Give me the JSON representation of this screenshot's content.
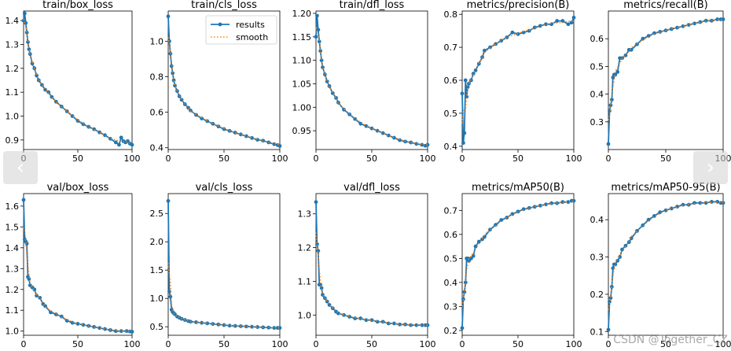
{
  "colors": {
    "results": "#1f77b4",
    "smooth": "#ff7f0e"
  },
  "legend": {
    "results": "results",
    "smooth": "smooth"
  },
  "nav": {
    "prev": "‹",
    "next": "›"
  },
  "watermark": "CSDN @Together_CZ",
  "chart_data": [
    {
      "type": "line",
      "title": "train/box_loss",
      "xlim": [
        0,
        100
      ],
      "ylim": [
        0.86,
        1.44
      ],
      "xticks": [
        0,
        50,
        100
      ],
      "yticks": [
        0.9,
        1.0,
        1.1,
        1.2,
        1.3,
        1.4
      ],
      "ytick_labels": [
        "0.9",
        "1.0",
        "1.1",
        "1.2",
        "1.3",
        "1.4"
      ],
      "legend": false,
      "x": [
        0,
        1,
        2,
        3,
        4,
        5,
        6,
        8,
        10,
        12,
        14,
        17,
        20,
        23,
        26,
        30,
        35,
        40,
        45,
        50,
        55,
        60,
        65,
        70,
        75,
        80,
        85,
        88,
        90,
        92,
        94,
        96,
        98,
        100
      ],
      "y": [
        1.4,
        1.43,
        1.39,
        1.35,
        1.31,
        1.28,
        1.26,
        1.22,
        1.2,
        1.17,
        1.15,
        1.13,
        1.11,
        1.1,
        1.08,
        1.06,
        1.04,
        1.02,
        1.0,
        0.98,
        0.966,
        0.955,
        0.945,
        0.932,
        0.92,
        0.905,
        0.89,
        0.88,
        0.91,
        0.895,
        0.89,
        0.895,
        0.885,
        0.88
      ]
    },
    {
      "type": "line",
      "title": "train/cls_loss",
      "xlim": [
        0,
        100
      ],
      "ylim": [
        0.39,
        1.17
      ],
      "xticks": [
        0,
        50,
        100
      ],
      "yticks": [
        0.4,
        0.6,
        0.8,
        1.0
      ],
      "ytick_labels": [
        "0.4",
        "0.6",
        "0.8",
        "1.0"
      ],
      "legend": true,
      "x": [
        0,
        1,
        2,
        3,
        4,
        5,
        6,
        8,
        10,
        12,
        15,
        18,
        20,
        25,
        30,
        35,
        40,
        45,
        50,
        55,
        60,
        65,
        70,
        75,
        80,
        85,
        90,
        95,
        98,
        100
      ],
      "y": [
        1.14,
        1.0,
        0.93,
        0.86,
        0.82,
        0.78,
        0.75,
        0.72,
        0.69,
        0.67,
        0.645,
        0.625,
        0.61,
        0.585,
        0.565,
        0.55,
        0.535,
        0.52,
        0.505,
        0.495,
        0.485,
        0.475,
        0.465,
        0.455,
        0.445,
        0.44,
        0.43,
        0.42,
        0.415,
        0.41
      ]
    },
    {
      "type": "line",
      "title": "train/dfl_loss",
      "xlim": [
        0,
        100
      ],
      "ylim": [
        0.91,
        1.205
      ],
      "xticks": [
        0,
        50,
        100
      ],
      "yticks": [
        0.95,
        1.0,
        1.05,
        1.1,
        1.15,
        1.2
      ],
      "ytick_labels": [
        "0.95",
        "1.00",
        "1.05",
        "1.10",
        "1.15",
        "1.20"
      ],
      "legend": false,
      "x": [
        0,
        1,
        2,
        3,
        4,
        5,
        6,
        8,
        10,
        12,
        15,
        18,
        20,
        25,
        30,
        35,
        40,
        45,
        50,
        55,
        60,
        65,
        70,
        75,
        80,
        85,
        90,
        95,
        98,
        100
      ],
      "y": [
        1.15,
        1.195,
        1.165,
        1.14,
        1.12,
        1.1,
        1.085,
        1.07,
        1.055,
        1.045,
        1.03,
        1.02,
        1.01,
        0.995,
        0.985,
        0.975,
        0.965,
        0.96,
        0.955,
        0.95,
        0.945,
        0.94,
        0.935,
        0.93,
        0.927,
        0.925,
        0.922,
        0.92,
        0.918,
        0.92
      ]
    },
    {
      "type": "line",
      "title": "metrics/precision(B)",
      "xlim": [
        0,
        100
      ],
      "ylim": [
        0.39,
        0.81
      ],
      "xticks": [
        0,
        50,
        100
      ],
      "yticks": [
        0.4,
        0.5,
        0.6,
        0.7,
        0.8
      ],
      "ytick_labels": [
        "0.4",
        "0.5",
        "0.6",
        "0.7",
        "0.8"
      ],
      "legend": false,
      "x": [
        0,
        1,
        2,
        3,
        4,
        5,
        6,
        8,
        10,
        12,
        15,
        18,
        20,
        25,
        30,
        35,
        40,
        45,
        50,
        55,
        60,
        65,
        70,
        75,
        80,
        85,
        90,
        95,
        98,
        100
      ],
      "y": [
        0.56,
        0.41,
        0.44,
        0.6,
        0.55,
        0.58,
        0.59,
        0.6,
        0.62,
        0.63,
        0.65,
        0.67,
        0.69,
        0.7,
        0.71,
        0.72,
        0.73,
        0.745,
        0.74,
        0.745,
        0.75,
        0.76,
        0.765,
        0.77,
        0.77,
        0.78,
        0.78,
        0.77,
        0.775,
        0.79
      ]
    },
    {
      "type": "line",
      "title": "metrics/recall(B)",
      "xlim": [
        0,
        100
      ],
      "ylim": [
        0.2,
        0.7
      ],
      "xticks": [
        0,
        50,
        100
      ],
      "yticks": [
        0.3,
        0.4,
        0.5,
        0.6
      ],
      "ytick_labels": [
        "0.3",
        "0.4",
        "0.5",
        "0.6"
      ],
      "legend": false,
      "x": [
        0,
        1,
        2,
        3,
        4,
        5,
        6,
        8,
        10,
        12,
        15,
        18,
        20,
        25,
        30,
        35,
        40,
        45,
        50,
        55,
        60,
        65,
        70,
        75,
        80,
        85,
        90,
        95,
        98,
        100
      ],
      "y": [
        0.22,
        0.34,
        0.36,
        0.38,
        0.46,
        0.47,
        0.47,
        0.48,
        0.53,
        0.53,
        0.54,
        0.56,
        0.56,
        0.58,
        0.6,
        0.61,
        0.62,
        0.625,
        0.63,
        0.635,
        0.64,
        0.645,
        0.65,
        0.655,
        0.66,
        0.665,
        0.665,
        0.67,
        0.67,
        0.67
      ]
    },
    {
      "type": "line",
      "title": "val/box_loss",
      "xlim": [
        0,
        100
      ],
      "ylim": [
        0.98,
        1.66
      ],
      "xticks": [
        0,
        50,
        100
      ],
      "yticks": [
        1.0,
        1.1,
        1.2,
        1.3,
        1.4,
        1.5,
        1.6
      ],
      "ytick_labels": [
        "1.0",
        "1.1",
        "1.2",
        "1.3",
        "1.4",
        "1.5",
        "1.6"
      ],
      "legend": false,
      "x": [
        0,
        1,
        2,
        3,
        4,
        5,
        6,
        8,
        10,
        12,
        15,
        18,
        20,
        25,
        30,
        35,
        40,
        45,
        50,
        55,
        60,
        65,
        70,
        75,
        80,
        85,
        90,
        95,
        98,
        100
      ],
      "y": [
        1.63,
        1.44,
        1.43,
        1.42,
        1.26,
        1.25,
        1.22,
        1.21,
        1.2,
        1.17,
        1.16,
        1.13,
        1.12,
        1.09,
        1.08,
        1.07,
        1.05,
        1.04,
        1.035,
        1.03,
        1.025,
        1.02,
        1.015,
        1.01,
        1.005,
        1.0,
        1.0,
        1.0,
        0.998,
        0.997
      ]
    },
    {
      "type": "line",
      "title": "val/cls_loss",
      "xlim": [
        0,
        100
      ],
      "ylim": [
        0.35,
        2.85
      ],
      "xticks": [
        0,
        50,
        100
      ],
      "yticks": [
        0.5,
        1.0,
        1.5,
        2.0,
        2.5
      ],
      "ytick_labels": [
        "0.5",
        "1.0",
        "1.5",
        "2.0",
        "2.5"
      ],
      "legend": false,
      "x": [
        0,
        1,
        2,
        3,
        4,
        5,
        6,
        8,
        10,
        12,
        15,
        18,
        20,
        25,
        30,
        35,
        40,
        45,
        50,
        55,
        60,
        65,
        70,
        75,
        80,
        85,
        90,
        95,
        98,
        100
      ],
      "y": [
        2.72,
        1.12,
        1.03,
        0.8,
        0.76,
        0.74,
        0.72,
        0.68,
        0.66,
        0.64,
        0.62,
        0.6,
        0.59,
        0.58,
        0.57,
        0.56,
        0.55,
        0.54,
        0.53,
        0.52,
        0.515,
        0.51,
        0.505,
        0.5,
        0.495,
        0.49,
        0.485,
        0.48,
        0.48,
        0.48
      ]
    },
    {
      "type": "line",
      "title": "val/dfl_loss",
      "xlim": [
        0,
        100
      ],
      "ylim": [
        0.94,
        1.36
      ],
      "xticks": [
        0,
        50,
        100
      ],
      "yticks": [
        1.0,
        1.1,
        1.2,
        1.3
      ],
      "ytick_labels": [
        "1.0",
        "1.1",
        "1.2",
        "1.3"
      ],
      "legend": false,
      "x": [
        0,
        1,
        2,
        3,
        4,
        5,
        6,
        8,
        10,
        12,
        15,
        18,
        20,
        25,
        30,
        35,
        40,
        45,
        50,
        55,
        60,
        65,
        70,
        75,
        80,
        85,
        90,
        95,
        98,
        100
      ],
      "y": [
        1.335,
        1.21,
        1.19,
        1.09,
        1.09,
        1.08,
        1.06,
        1.05,
        1.04,
        1.03,
        1.02,
        1.01,
        1.005,
        1.0,
        0.995,
        0.99,
        0.99,
        0.985,
        0.985,
        0.98,
        0.98,
        0.975,
        0.975,
        0.972,
        0.972,
        0.97,
        0.97,
        0.97,
        0.97,
        0.97
      ]
    },
    {
      "type": "line",
      "title": "metrics/mAP50(B)",
      "xlim": [
        0,
        100
      ],
      "ylim": [
        0.18,
        0.77
      ],
      "xticks": [
        0,
        50,
        100
      ],
      "yticks": [
        0.2,
        0.3,
        0.4,
        0.5,
        0.6,
        0.7
      ],
      "ytick_labels": [
        "0.2",
        "0.3",
        "0.4",
        "0.5",
        "0.6",
        "0.7"
      ],
      "legend": false,
      "x": [
        0,
        1,
        2,
        3,
        4,
        5,
        6,
        8,
        10,
        12,
        15,
        18,
        20,
        25,
        30,
        35,
        40,
        45,
        50,
        55,
        60,
        65,
        70,
        75,
        80,
        85,
        90,
        95,
        98,
        100
      ],
      "y": [
        0.21,
        0.33,
        0.36,
        0.4,
        0.5,
        0.5,
        0.49,
        0.5,
        0.51,
        0.55,
        0.57,
        0.58,
        0.59,
        0.62,
        0.64,
        0.66,
        0.67,
        0.685,
        0.695,
        0.705,
        0.71,
        0.715,
        0.72,
        0.725,
        0.73,
        0.73,
        0.735,
        0.735,
        0.74,
        0.74
      ]
    },
    {
      "type": "line",
      "title": "metrics/mAP50-95(B)",
      "xlim": [
        0,
        100
      ],
      "ylim": [
        0.09,
        0.47
      ],
      "xticks": [
        0,
        50,
        100
      ],
      "yticks": [
        0.1,
        0.2,
        0.3,
        0.4
      ],
      "ytick_labels": [
        "0.1",
        "0.2",
        "0.3",
        "0.4"
      ],
      "legend": false,
      "x": [
        0,
        1,
        2,
        3,
        4,
        5,
        6,
        8,
        10,
        12,
        15,
        18,
        20,
        25,
        30,
        35,
        40,
        45,
        50,
        55,
        60,
        65,
        70,
        75,
        80,
        85,
        90,
        95,
        98,
        100
      ],
      "y": [
        0.105,
        0.18,
        0.19,
        0.22,
        0.27,
        0.28,
        0.28,
        0.29,
        0.3,
        0.32,
        0.33,
        0.34,
        0.35,
        0.37,
        0.385,
        0.4,
        0.41,
        0.42,
        0.425,
        0.43,
        0.435,
        0.44,
        0.44,
        0.445,
        0.445,
        0.445,
        0.448,
        0.448,
        0.445,
        0.445
      ]
    }
  ]
}
